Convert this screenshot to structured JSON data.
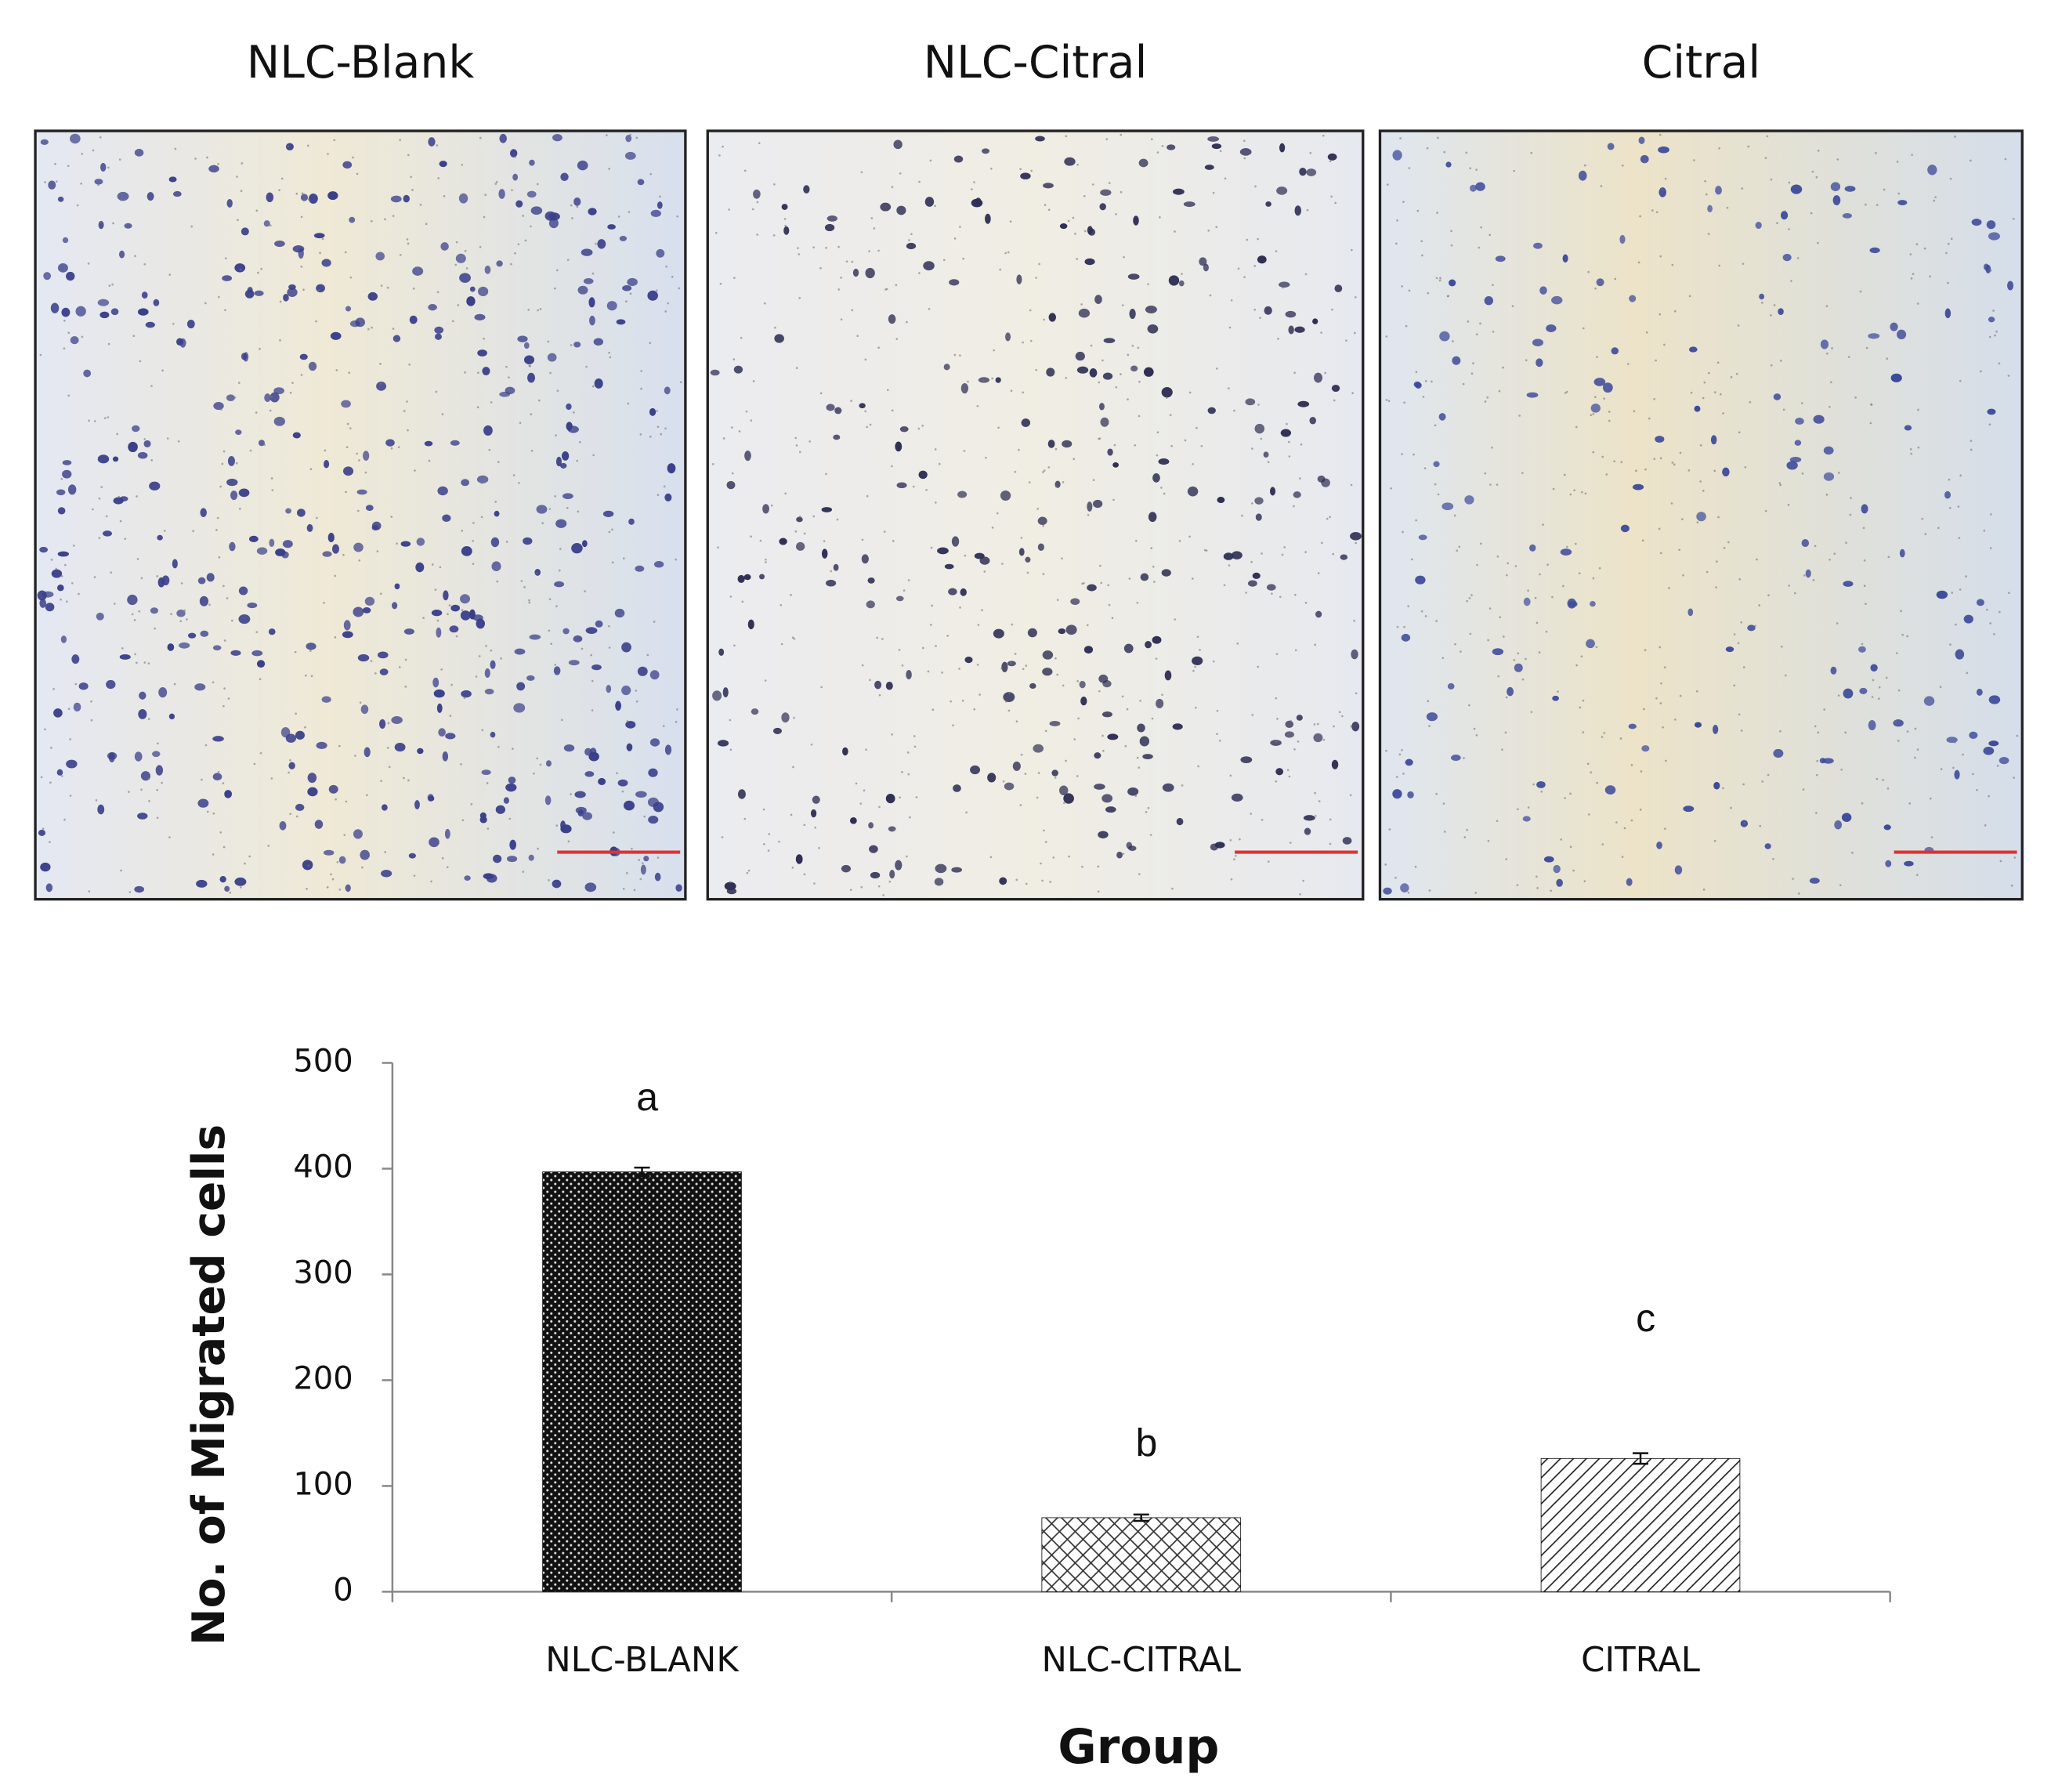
{
  "panels": [
    {
      "title": "NLC-Blank"
    },
    {
      "title": "NLC-Citral"
    },
    {
      "title": "Citral"
    }
  ],
  "chart_data": {
    "type": "bar",
    "xlabel": "Group",
    "ylabel": "No. of Migrated cells",
    "categories": [
      "NLC-BLANK",
      "NLC-CITRAL",
      "CITRAL"
    ],
    "values": [
      397,
      70,
      126
    ],
    "errors": [
      4,
      3,
      5
    ],
    "annotations": [
      "a",
      "b",
      "c"
    ],
    "ylim": [
      0,
      500
    ],
    "yticks": [
      0,
      100,
      200,
      300,
      400,
      500
    ],
    "color": "#111111"
  }
}
